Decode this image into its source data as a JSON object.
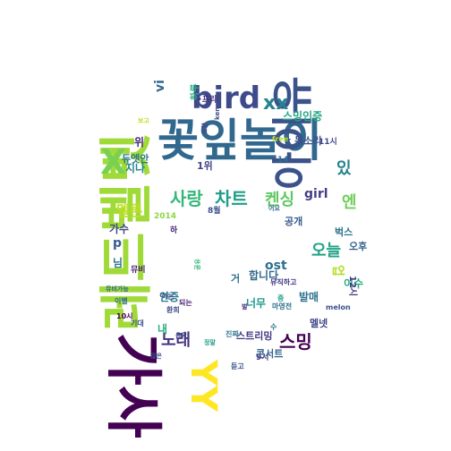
{
  "title": "",
  "words": [
    {
      "text": "레드벨벳",
      "fontSize": 60,
      "color": "#a0da39",
      "rotate": -90
    },
    {
      "text": "꽃잎놀이",
      "fontSize": 50,
      "color": "#31688e",
      "rotate": 0
    },
    {
      "text": "가사",
      "fontSize": 64,
      "color": "#440154",
      "rotate": 90
    },
    {
      "text": "아이유",
      "fontSize": 46,
      "color": "#3b528b",
      "rotate": -90
    },
    {
      "text": "YY",
      "fontSize": 40,
      "color": "#fde725",
      "rotate": 90
    },
    {
      "text": "bird",
      "fontSize": 34,
      "color": "#3e4a89",
      "rotate": 0
    },
    {
      "text": "X",
      "fontSize": 38,
      "color": "#7ad151",
      "rotate": 0
    },
    {
      "text": "xx",
      "fontSize": 22,
      "color": "#26828e",
      "rotate": 0
    },
    {
      "text": "사랑",
      "fontSize": 20,
      "color": "#35b779",
      "rotate": 0
    },
    {
      "text": "차트",
      "fontSize": 20,
      "color": "#1f9e89",
      "rotate": 0
    },
    {
      "text": "켄싱",
      "fontSize": 18,
      "color": "#5ec962",
      "rotate": 0
    },
    {
      "text": "멜론",
      "fontSize": 16,
      "color": "#bddf26",
      "rotate": 0
    },
    {
      "text": "girl",
      "fontSize": 14,
      "color": "#433e85",
      "rotate": 0
    },
    {
      "text": "스밍",
      "fontSize": 20,
      "color": "#440154",
      "rotate": 0
    },
    {
      "text": "노래",
      "fontSize": 18,
      "color": "#46327e",
      "rotate": 0
    },
    {
      "text": "오늘",
      "fontSize": 18,
      "color": "#20a386",
      "rotate": 0
    },
    {
      "text": "있",
      "fontSize": 18,
      "color": "#26828e",
      "rotate": 0
    },
    {
      "text": "엔",
      "fontSize": 18,
      "color": "#6ece58",
      "rotate": 0
    },
    {
      "text": "ost",
      "fontSize": 14,
      "color": "#2d708e",
      "rotate": 0
    },
    {
      "text": "업",
      "fontSize": 14,
      "color": "#b5de2b",
      "rotate": 90
    },
    {
      "text": "vi",
      "fontSize": 14,
      "color": "#31688e",
      "rotate": -90
    },
    {
      "text": "스밍인증",
      "fontSize": 12,
      "color": "#22a884",
      "rotate": 0
    },
    {
      "text": "k 목소리",
      "fontSize": 11,
      "color": "#3b528b",
      "rotate": 0
    },
    {
      "text": "위",
      "fontSize": 12,
      "color": "#482878",
      "rotate": 0
    },
    {
      "text": "듀엣안",
      "fontSize": 11,
      "color": "#2a788e",
      "rotate": 0
    },
    {
      "text": "1위",
      "fontSize": 11,
      "color": "#414487",
      "rotate": 0
    },
    {
      "text": "지나",
      "fontSize": 12,
      "color": "#25858e",
      "rotate": 0
    },
    {
      "text": "p",
      "fontSize": 14,
      "color": "#365c8d",
      "rotate": 0
    },
    {
      "text": "가수",
      "fontSize": 12,
      "color": "#3e4a89",
      "rotate": 0
    },
    {
      "text": "공개",
      "fontSize": 11,
      "color": "#375a8c",
      "rotate": 0
    },
    {
      "text": "벅스",
      "fontSize": 11,
      "color": "#2c728e",
      "rotate": 0
    },
    {
      "text": "오후",
      "fontSize": 11,
      "color": "#33638d",
      "rotate": 0
    },
    {
      "text": "이수",
      "fontSize": 12,
      "color": "#27ad81",
      "rotate": 0
    },
    {
      "text": "12시",
      "fontSize": 10,
      "color": "#453581",
      "rotate": 90
    },
    {
      "text": "합니다",
      "fontSize": 12,
      "color": "#31688e",
      "rotate": 0
    },
    {
      "text": "인증",
      "fontSize": 12,
      "color": "#2a788e",
      "rotate": 0
    },
    {
      "text": "너무",
      "fontSize": 12,
      "color": "#1f988b",
      "rotate": 0
    },
    {
      "text": "발매",
      "fontSize": 12,
      "color": "#2d708e",
      "rotate": 0
    },
    {
      "text": "멜넷",
      "fontSize": 11,
      "color": "#3f4788",
      "rotate": 0
    },
    {
      "text": "스트리밍",
      "fontSize": 11,
      "color": "#443983",
      "rotate": 0
    },
    {
      "text": "콘서트",
      "fontSize": 11,
      "color": "#33638d",
      "rotate": 0
    },
    {
      "text": "내",
      "fontSize": 12,
      "color": "#29af7f",
      "rotate": 0
    },
    {
      "text": "님",
      "fontSize": 12,
      "color": "#2c728e",
      "rotate": 0
    },
    {
      "text": "뮤비",
      "fontSize": 9,
      "color": "#481f70",
      "rotate": 0
    },
    {
      "text": "2014",
      "fontSize": 9,
      "color": "#8fd744",
      "rotate": 0
    },
    {
      "text": "8월",
      "fontSize": 9,
      "color": "#3b528b",
      "rotate": 0
    },
    {
      "text": "14",
      "fontSize": 9,
      "color": "#2d708e",
      "rotate": 0
    },
    {
      "text": "11시",
      "fontSize": 9,
      "color": "#3e4989",
      "rotate": 0
    },
    {
      "text": "9시",
      "fontSize": 9,
      "color": "#433e85",
      "rotate": 0
    },
    {
      "text": "10시",
      "fontSize": 8,
      "color": "#440154",
      "rotate": 0
    },
    {
      "text": "melon",
      "fontSize": 8,
      "color": "#3b528b",
      "rotate": 0
    },
    {
      "text": "마영전",
      "fontSize": 8,
      "color": "#2d708e",
      "rotate": 0
    },
    {
      "text": "뮤직하고",
      "fontSize": 8,
      "color": "#443983",
      "rotate": 0
    },
    {
      "text": "환희",
      "fontSize": 8,
      "color": "#3e4a89",
      "rotate": 0
    },
    {
      "text": "기대",
      "fontSize": 8,
      "color": "#3b528b",
      "rotate": 0
    },
    {
      "text": "이별",
      "fontSize": 8,
      "color": "#31688e",
      "rotate": 0
    },
    {
      "text": "진짜",
      "fontSize": 8,
      "color": "#2a788e",
      "rotate": 0
    },
    {
      "text": "듣고",
      "fontSize": 8,
      "color": "#3b528b",
      "rotate": 0
    },
    {
      "text": "되는",
      "fontSize": 8,
      "color": "#482475",
      "rotate": 0
    },
    {
      "text": "하는",
      "fontSize": 8,
      "color": "#3b528b",
      "rotate": 0
    },
    {
      "text": "•프리",
      "fontSize": 9,
      "color": "#46327e",
      "rotate": 0
    },
    {
      "text": "하루",
      "fontSize": 10,
      "color": "#27ad81",
      "rotate": -90
    },
    {
      "text": "free",
      "fontSize": 8,
      "color": "#b5de2b",
      "rotate": 0
    },
    {
      "text": "ken",
      "fontSize": 7,
      "color": "#3e4a89",
      "rotate": -90
    },
    {
      "text": "보고",
      "fontSize": 7,
      "color": "#bddf26",
      "rotate": 0
    },
    {
      "text": "수",
      "fontSize": 8,
      "color": "#2d708e",
      "rotate": 0
    },
    {
      "text": "중",
      "fontSize": 8,
      "color": "#1f9e89",
      "rotate": 0
    },
    {
      "text": "거",
      "fontSize": 11,
      "color": "#2c728e",
      "rotate": 0
    },
    {
      "text": "하",
      "fontSize": 9,
      "color": "#482878",
      "rotate": 0
    },
    {
      "text": "어요",
      "fontSize": 7,
      "color": "#31688e",
      "rotate": 0
    },
    {
      "text": "않은",
      "fontSize": 7,
      "color": "#3b528b",
      "rotate": 0
    },
    {
      "text": "음악",
      "fontSize": 7,
      "color": "#3e4a89",
      "rotate": 0
    },
    {
      "text": "뮤비가능",
      "fontSize": 7,
      "color": "#31688e",
      "rotate": 0
    },
    {
      "text": "공유",
      "fontSize": 7,
      "color": "#35b779",
      "rotate": -90
    },
    {
      "text": "포함",
      "fontSize": 7,
      "color": "#3e4a89",
      "rotate": -90
    },
    {
      "text": "정말",
      "fontSize": 7,
      "color": "#1f9e89",
      "rotate": 0
    },
    {
      "text": "벌",
      "fontSize": 7,
      "color": "#482878",
      "rotate": 0
    }
  ]
}
